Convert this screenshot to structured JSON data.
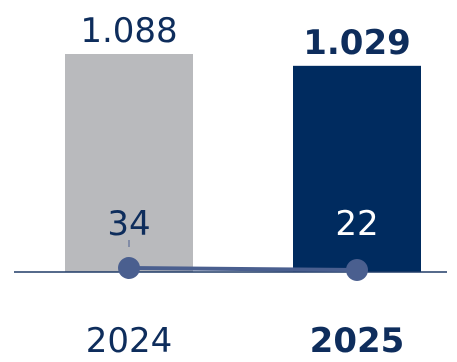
{
  "chart_data": {
    "type": "bar",
    "categories": [
      "2024",
      "2025"
    ],
    "series": [
      {
        "values": [
          1088,
          1029
        ]
      }
    ],
    "value_labels": [
      "1.088",
      "1.029"
    ],
    "line_series": {
      "values": [
        34,
        22
      ],
      "labels": [
        "34",
        "22"
      ]
    },
    "title": "",
    "xlabel": "",
    "ylabel": "",
    "ylim": [
      0,
      1100
    ],
    "grid": false,
    "legend": "none",
    "colors": {
      "bar_prior": "#b9babd",
      "bar_current": "#002b5f",
      "line": "#4a5f8f",
      "axis": "#1f3a66",
      "text_prior": "#0e2d5c",
      "text_current": "#0e2d5c",
      "line_label_on_current": "#ffffff"
    }
  }
}
